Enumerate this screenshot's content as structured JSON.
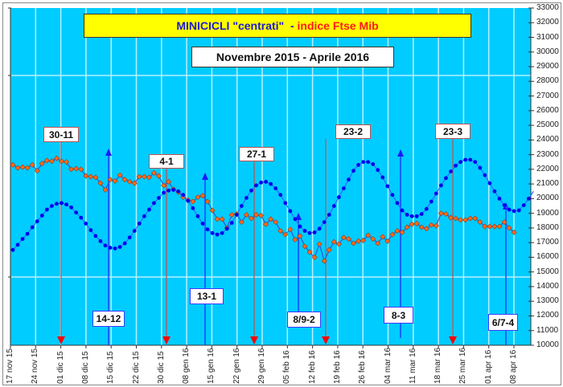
{
  "chart_data": {
    "type": "line",
    "title": "MINICICLI \"centrati\" - indice Ftse Mib",
    "title_parts": {
      "blue": "MINICICLI \"centrati\"  - ",
      "red": "indice Ftse Mib"
    },
    "subtitle": "Novembre 2015 - Aprile 2016",
    "xlabel": "",
    "ylabel": "",
    "ylim": [
      10000,
      33000
    ],
    "y_axis_position": "right",
    "y_ticks": [
      "33000",
      "32000",
      "31000",
      "30000",
      "29000",
      "28000",
      "27000",
      "26000",
      "25000",
      "24000",
      "23000",
      "22000",
      "21000",
      "20000",
      "19000",
      "18000",
      "17000",
      "16000",
      "15000",
      "14000",
      "13000",
      "12000",
      "11000",
      "10000"
    ],
    "x_ticks": [
      "17 nov 15",
      "24 nov 15",
      "01 dic 15",
      "08 dic 15",
      "15 dic 15",
      "22 dic 15",
      "30 dic 15",
      "08 gen 16",
      "15 gen 16",
      "22 gen 16",
      "29 gen 16",
      "05 feb 16",
      "12 feb 16",
      "19 feb 16",
      "26 feb 16",
      "04 mar 16",
      "11 mar 16",
      "18 mar 16",
      "25 mar 16",
      "01 apr 16",
      "08 apr 16"
    ],
    "grid": true,
    "background": "#00ccff",
    "series": [
      {
        "name": "indice Ftse Mib",
        "color": "#ff6600",
        "line_color": "#3355cc",
        "values": [
          22300,
          22100,
          22150,
          22100,
          22300,
          21900,
          22400,
          22600,
          22550,
          22750,
          22550,
          22500,
          22000,
          22050,
          22000,
          21550,
          21500,
          21450,
          21050,
          20600,
          21300,
          21200,
          21600,
          21300,
          21150,
          21050,
          21500,
          21500,
          21450,
          21750,
          21550,
          20900,
          21150,
          20650,
          20450,
          20100,
          19900,
          19800,
          20100,
          20200,
          19800,
          19200,
          18600,
          18600,
          18000,
          18900,
          18950,
          18400,
          18900,
          18650,
          18900,
          18850,
          18250,
          18600,
          18400,
          17800,
          17550,
          17900,
          17200,
          17450,
          16750,
          16350,
          16000,
          16900,
          15750,
          16500,
          17050,
          16900,
          17350,
          17250,
          16950,
          17100,
          17150,
          17500,
          17250,
          16950,
          17400,
          17100,
          17550,
          17800,
          17700,
          18050,
          18250,
          18300,
          18050,
          17950,
          18200,
          18150,
          19000,
          18950,
          18700,
          18650,
          18550,
          18550,
          18650,
          18650,
          18400,
          18100,
          18100,
          18100,
          18100,
          18400,
          18000,
          17700
        ]
      },
      {
        "name": "minicicli centrati",
        "color": "#0000ee",
        "line_color": "#3366ff",
        "values": [
          16500,
          16850,
          17250,
          17600,
          18050,
          18450,
          18850,
          19250,
          19500,
          19650,
          19700,
          19600,
          19400,
          19050,
          18700,
          18300,
          17850,
          17450,
          17100,
          16800,
          16650,
          16600,
          16700,
          16950,
          17350,
          17800,
          18300,
          18800,
          19250,
          19700,
          20050,
          20400,
          20550,
          20600,
          20500,
          20250,
          19850,
          19350,
          18800,
          18300,
          17900,
          17650,
          17550,
          17650,
          17950,
          18350,
          18900,
          19500,
          20050,
          20550,
          20900,
          21100,
          21150,
          21000,
          20700,
          20250,
          19700,
          19150,
          18600,
          18100,
          17800,
          17650,
          17700,
          17950,
          18400,
          18900,
          19500,
          20100,
          20700,
          21300,
          21900,
          22300,
          22500,
          22500,
          22350,
          21950,
          21450,
          20850,
          20250,
          19700,
          19200,
          18900,
          18800,
          18800,
          18950,
          19300,
          19800,
          20350,
          20900,
          21400,
          21850,
          22250,
          22500,
          22650,
          22650,
          22500,
          22100,
          21600,
          21050,
          20500,
          20000,
          19550,
          19250,
          19150,
          19200,
          19550,
          20000,
          20500
        ]
      }
    ],
    "annotations": {
      "tops": [
        {
          "label": "30-11",
          "date": "30 nov 15",
          "color": "#ff0000"
        },
        {
          "label": "4-1",
          "date": "04 gen 16",
          "color": "#ff0000"
        },
        {
          "label": "27-1",
          "date": "27 gen 16",
          "color": "#ff0000"
        },
        {
          "label": "23-2",
          "date": "23 feb 16",
          "color": "#ff0000"
        },
        {
          "label": "23-3",
          "date": "23 mar 16",
          "color": "#ff0000"
        }
      ],
      "bottoms": [
        {
          "label": "14-12",
          "date": "14 dic 15",
          "color": "#0000ff"
        },
        {
          "label": "13-1",
          "date": "13 gen 16",
          "color": "#0000ff"
        },
        {
          "label": "8/9-2",
          "date": "08 feb 16",
          "color": "#0000ff"
        },
        {
          "label": "8-3",
          "date": "08 mar 16",
          "color": "#0000ff"
        },
        {
          "label": "6/7-4",
          "date": "06 apr 16",
          "color": "#0000ff"
        }
      ]
    }
  }
}
